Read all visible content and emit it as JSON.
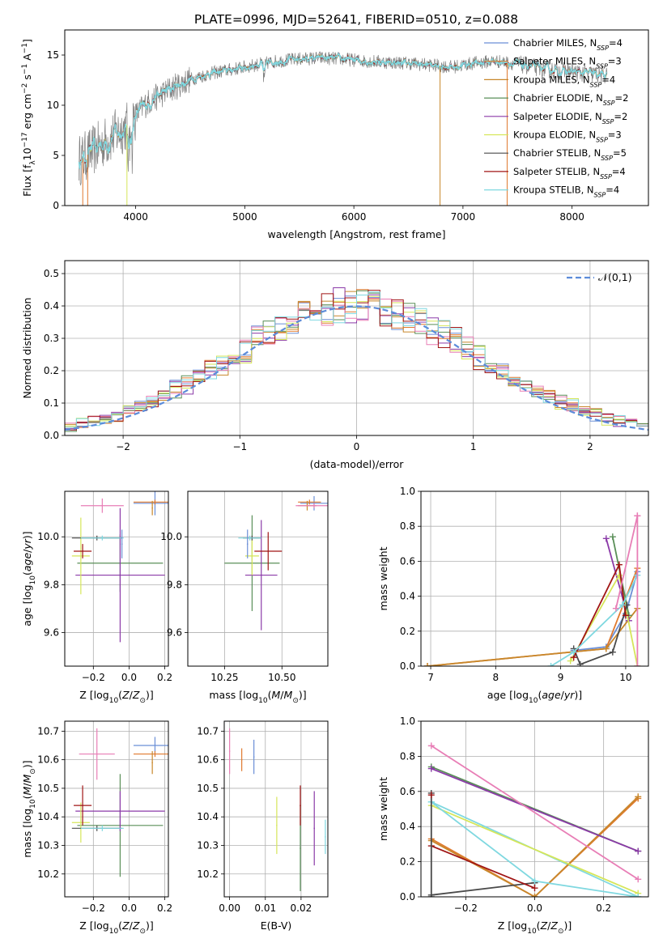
{
  "suptitle": "PLATE=0996, MJD=52641, FIBERID=0510, z=0.088",
  "series": [
    {
      "name": "Chabrier MILES, N$_{SSP}$=4",
      "label": "Chabrier MILES, N",
      "sub": "SSP",
      "suffix": "=4",
      "color": "#6b8fd6"
    },
    {
      "name": "Salpeter MILES",
      "label": "Salpeter MILES, N",
      "sub": "SSP",
      "suffix": "=3",
      "color": "#e07a2f"
    },
    {
      "name": "Kroupa MILES",
      "label": "Kroupa MILES, N",
      "sub": "SSP",
      "suffix": "=4",
      "color": "#c8872b"
    },
    {
      "name": "Chabrier ELODIE",
      "label": "Chabrier ELODIE, N",
      "sub": "SSP",
      "suffix": "=2",
      "color": "#5a8f58"
    },
    {
      "name": "Salpeter ELODIE",
      "label": "Salpeter ELODIE, N",
      "sub": "SSP",
      "suffix": "=2",
      "color": "#8b3aa8"
    },
    {
      "name": "Kroupa ELODIE",
      "label": "Kroupa ELODIE, N",
      "sub": "SSP",
      "suffix": "=3",
      "color": "#d6e65a"
    },
    {
      "name": "Chabrier STELIB",
      "label": "Chabrier STELIB, N",
      "sub": "SSP",
      "suffix": "=5",
      "color": "#4a4a4a"
    },
    {
      "name": "Salpeter STELIB",
      "label": "Salpeter STELIB, N",
      "sub": "SSP",
      "suffix": "=4",
      "color": "#a01515"
    },
    {
      "name": "Kroupa STELIB",
      "label": "Kroupa STELIB, N",
      "sub": "SSP",
      "suffix": "=4",
      "color": "#7fd8e0"
    }
  ],
  "chart_data": [
    {
      "id": "spectrum",
      "type": "line",
      "xlabel": "wavelength [Angstrom, rest frame]",
      "ylabel_main": "Flux [f",
      "ylabel_sub": "λ",
      "ylabel_rest": "10",
      "ylabel_sup": "−17",
      "ylabel_units": " erg cm",
      "ylabel_sup2": "−2",
      "ylabel_units2": " s",
      "ylabel_sup3": "−1",
      "ylabel_units3": " A",
      "ylabel_sup4": "−1",
      "ylabel_close": "]",
      "xlim": [
        3350,
        8700
      ],
      "ylim": [
        0,
        17.5
      ],
      "xticks": [
        4000,
        5000,
        6000,
        7000,
        8000
      ],
      "yticks": [
        0,
        5,
        10,
        15
      ],
      "data_color": "#808080",
      "continuum": {
        "x": [
          3500,
          3700,
          3900,
          4100,
          4300,
          4500,
          4700,
          4900,
          5100,
          5300,
          5500,
          5700,
          5900,
          6100,
          6300,
          6500,
          6700,
          6900,
          7100,
          7300,
          7500,
          7700,
          7900,
          8100,
          8300
        ],
        "y": [
          4.6,
          6.2,
          7.8,
          10.2,
          11.5,
          12.6,
          13.2,
          13.6,
          14.0,
          14.4,
          14.6,
          14.7,
          14.6,
          14.4,
          14.3,
          14.2,
          14.0,
          13.8,
          14.2,
          14.4,
          14.1,
          13.7,
          13.4,
          13.2,
          13.0
        ]
      }
    },
    {
      "id": "residuals",
      "type": "histogram",
      "xlabel": "(data-model)/error",
      "ylabel": "Normed distribution",
      "xlim": [
        -2.5,
        2.5
      ],
      "ylim": [
        0,
        0.54
      ],
      "xticks": [
        -2,
        -1,
        0,
        1,
        2
      ],
      "xticklabels": [
        "−2",
        "−1",
        "0",
        "1",
        "2"
      ],
      "yticks": [
        0.0,
        0.1,
        0.2,
        0.3,
        0.4,
        0.5
      ],
      "yticklabels": [
        "0.0",
        "0.1",
        "0.2",
        "0.3",
        "0.4",
        "0.5"
      ],
      "bin_width": 0.1,
      "normal_curve": {
        "name": "𝒩(0,1)",
        "color": "#5b8bd9"
      }
    },
    {
      "id": "age_vs_Z",
      "type": "errorbar",
      "xlabel": "Z [log10(Z/Z⊙)]",
      "ylabel": "age  [log10(age/yr)]",
      "xlim": [
        -0.36,
        0.22
      ],
      "ylim": [
        9.46,
        10.19
      ],
      "xticks": [
        -0.2,
        0.0,
        0.2
      ],
      "xticklabels": [
        "−0.2",
        "0.0",
        "0.2"
      ],
      "yticks": [
        9.6,
        9.8,
        10.0
      ],
      "yticklabels": [
        "9.6",
        "9.8",
        "10.0"
      ],
      "points": [
        {
          "s": 0,
          "x": 0.145,
          "xerr": 0.12,
          "y": 10.14,
          "yerr": 0.05
        },
        {
          "s": 1,
          "x": 0.145,
          "xerr": 0.12,
          "y": 10.145,
          "yerr": 0.01
        },
        {
          "s": 2,
          "x": 0.13,
          "xerr": 0.0,
          "y": 10.12,
          "yerr": 0.03
        },
        {
          "s": 3,
          "x": -0.05,
          "xerr": 0.24,
          "y": 9.89,
          "yerr": 0.12
        },
        {
          "s": 4,
          "x": -0.05,
          "xerr": 0.25,
          "y": 9.84,
          "yerr": 0.28
        },
        {
          "s": 5,
          "x": -0.27,
          "xerr": 0.05,
          "y": 9.92,
          "yerr": 0.16
        },
        {
          "s": 6,
          "x": -0.18,
          "xerr": 0.14,
          "y": 9.995,
          "yerr": 0.01
        },
        {
          "s": 7,
          "x": -0.26,
          "xerr": 0.05,
          "y": 9.94,
          "yerr": 0.03
        },
        {
          "s": 8,
          "x": -0.15,
          "xerr": 0.12,
          "y": 9.995,
          "yerr": 0.01
        },
        {
          "s": 0,
          "x": -0.04,
          "xerr": 0.0,
          "y": 9.97,
          "yerr": 0.06
        },
        {
          "s": 7,
          "x": -0.15,
          "xerr": 0.12,
          "y": 10.13,
          "yerr": 0.03,
          "color": "#e87eb6"
        }
      ]
    },
    {
      "id": "age_vs_mass",
      "type": "errorbar",
      "xlabel": "mass [log10(M/M⊙)]",
      "ylabel": "",
      "xlim": [
        10.09,
        10.7
      ],
      "ylim": [
        9.46,
        10.19
      ],
      "xticks": [
        10.25,
        10.5
      ],
      "xticklabels": [
        "10.25",
        "10.50"
      ],
      "yticks": [
        9.6,
        9.8,
        10.0
      ],
      "yticklabels": [
        "9.6",
        "9.8",
        "10.0"
      ],
      "points": [
        {
          "s": 0,
          "x": 10.64,
          "xerr": 0.06,
          "y": 10.14,
          "yerr": 0.03
        },
        {
          "s": 1,
          "x": 10.62,
          "xerr": 0.05,
          "y": 10.145,
          "yerr": 0.01
        },
        {
          "s": 2,
          "x": 10.61,
          "xerr": 0.04,
          "y": 10.13,
          "yerr": 0.02
        },
        {
          "s": 3,
          "x": 10.37,
          "xerr": 0.12,
          "y": 9.89,
          "yerr": 0.2
        },
        {
          "s": 4,
          "x": 10.41,
          "xerr": 0.07,
          "y": 9.84,
          "yerr": 0.23
        },
        {
          "s": 5,
          "x": 10.37,
          "xerr": 0.03,
          "y": 9.92,
          "yerr": 0.08
        },
        {
          "s": 6,
          "x": 10.37,
          "xerr": 0.04,
          "y": 9.995,
          "yerr": 0.01
        },
        {
          "s": 7,
          "x": 10.44,
          "xerr": 0.06,
          "y": 9.94,
          "yerr": 0.08
        },
        {
          "s": 8,
          "x": 10.36,
          "xerr": 0.05,
          "y": 9.995,
          "yerr": 0.01
        },
        {
          "s": 0,
          "x": 10.35,
          "xerr": 0.0,
          "y": 9.97,
          "yerr": 0.06
        },
        {
          "s": 7,
          "x": 10.64,
          "xerr": 0.08,
          "y": 10.13,
          "yerr": 0.01,
          "color": "#e87eb6"
        }
      ]
    },
    {
      "id": "weight_vs_age",
      "type": "line",
      "xlabel": "age  [log10(age/yr)]",
      "ylabel": "mass weight",
      "xlim": [
        6.85,
        10.35
      ],
      "ylim": [
        0,
        1
      ],
      "xticks": [
        7,
        8,
        9,
        10
      ],
      "xticklabels": [
        "7",
        "8",
        "9",
        "10"
      ],
      "yticks": [
        0,
        0.2,
        0.4,
        0.6,
        0.8,
        1.0
      ],
      "yticklabels": [
        "0.0",
        "0.2",
        "0.4",
        "0.6",
        "0.8",
        "1.0"
      ],
      "lines": [
        {
          "s": 0,
          "x": [
            9.2,
            9.7,
            10.0,
            10.18
          ],
          "y": [
            0.09,
            0.11,
            0.3,
            0.54
          ]
        },
        {
          "s": 1,
          "x": [
            6.95,
            9.7,
            10.18
          ],
          "y": [
            0.0,
            0.1,
            0.56
          ]
        },
        {
          "s": 2,
          "x": [
            6.95,
            9.7,
            10.18
          ],
          "y": [
            0.0,
            0.1,
            0.33
          ]
        },
        {
          "s": 3,
          "x": [
            9.8,
            10.05
          ],
          "y": [
            0.74,
            0.29
          ]
        },
        {
          "s": 4,
          "x": [
            9.7,
            10.05
          ],
          "y": [
            0.73,
            0.26
          ]
        },
        {
          "s": 5,
          "x": [
            9.15,
            9.9,
            10.18
          ],
          "y": [
            0.03,
            0.52,
            0.0
          ]
        },
        {
          "s": 6,
          "x": [
            9.2,
            9.3,
            9.8,
            10.02
          ],
          "y": [
            0.1,
            0.01,
            0.08,
            0.35
          ]
        },
        {
          "s": 7,
          "x": [
            9.2,
            9.9,
            10.0
          ],
          "y": [
            0.05,
            0.58,
            0.29
          ]
        },
        {
          "s": 8,
          "x": [
            8.85,
            9.2,
            9.95,
            10.18
          ],
          "y": [
            0.0,
            0.08,
            0.35,
            0.52
          ]
        },
        {
          "s": 0,
          "x": [
            10.18,
            10.18
          ],
          "y": [
            0.0,
            0.86
          ],
          "color": "#e87eb6"
        },
        {
          "s": 0,
          "x": [
            9.85,
            10.18
          ],
          "y": [
            0.33,
            0.86
          ],
          "color": "#e87eb6"
        }
      ]
    },
    {
      "id": "mass_vs_Z",
      "type": "errorbar",
      "xlabel": "Z [log10(Z/Z⊙)]",
      "ylabel": "mass [log10(M/M⊙)]",
      "xlim": [
        -0.36,
        0.22
      ],
      "ylim": [
        10.12,
        10.735
      ],
      "xticks": [
        -0.2,
        0.0,
        0.2
      ],
      "xticklabels": [
        "−0.2",
        "0.0",
        "0.2"
      ],
      "yticks": [
        10.2,
        10.3,
        10.4,
        10.5,
        10.6,
        10.7
      ],
      "yticklabels": [
        "10.2",
        "10.3",
        "10.4",
        "10.5",
        "10.6",
        "10.7"
      ],
      "points": [
        {
          "s": 0,
          "x": 0.145,
          "xerr": 0.12,
          "y": 10.65,
          "yerr": 0.03
        },
        {
          "s": 1,
          "x": 0.145,
          "xerr": 0.12,
          "y": 10.62,
          "yerr": 0.01
        },
        {
          "s": 2,
          "x": 0.13,
          "xerr": 0.0,
          "y": 10.59,
          "yerr": 0.04
        },
        {
          "s": 3,
          "x": -0.05,
          "xerr": 0.24,
          "y": 10.37,
          "yerr": 0.18
        },
        {
          "s": 4,
          "x": -0.05,
          "xerr": 0.25,
          "y": 10.42,
          "yerr": 0.07
        },
        {
          "s": 5,
          "x": -0.27,
          "xerr": 0.05,
          "y": 10.38,
          "yerr": 0.07
        },
        {
          "s": 6,
          "x": -0.18,
          "xerr": 0.14,
          "y": 10.36,
          "yerr": 0.01
        },
        {
          "s": 7,
          "x": -0.26,
          "xerr": 0.05,
          "y": 10.44,
          "yerr": 0.07
        },
        {
          "s": 8,
          "x": -0.15,
          "xerr": 0.12,
          "y": 10.36,
          "yerr": 0.01
        },
        {
          "s": 7,
          "x": -0.18,
          "xerr": 0.1,
          "y": 10.62,
          "yerr": 0.09,
          "color": "#e87eb6"
        }
      ]
    },
    {
      "id": "mass_vs_EBV",
      "type": "errorbar",
      "xlabel": "E(B-V)",
      "ylabel": "",
      "xlim": [
        -0.0015,
        0.0275
      ],
      "ylim": [
        10.12,
        10.735
      ],
      "xticks": [
        0.0,
        0.01,
        0.02
      ],
      "xticklabels": [
        "0.00",
        "0.01",
        "0.02"
      ],
      "yticks": [
        10.2,
        10.3,
        10.4,
        10.5,
        10.6,
        10.7
      ],
      "yticklabels": [
        "10.2",
        "10.3",
        "10.4",
        "10.5",
        "10.6",
        "10.7"
      ],
      "points": [
        {
          "s": 0,
          "x": 0.0068,
          "xerr": 0,
          "y": 10.61,
          "yerr": 0.06
        },
        {
          "s": 1,
          "x": 0.0034,
          "xerr": 0,
          "y": 10.6,
          "yerr": 0.04
        },
        {
          "s": 5,
          "x": 0.0132,
          "xerr": 0,
          "y": 10.37,
          "yerr": 0.1
        },
        {
          "s": 3,
          "x": 0.0198,
          "xerr": 0,
          "y": 10.29,
          "yerr": 0.15
        },
        {
          "s": 7,
          "x": 0.0198,
          "xerr": 0,
          "y": 10.44,
          "yerr": 0.07
        },
        {
          "s": 4,
          "x": 0.0237,
          "xerr": 0,
          "y": 10.36,
          "yerr": 0.13
        },
        {
          "s": 8,
          "x": 0.0268,
          "xerr": 0,
          "y": 10.33,
          "yerr": 0.06
        },
        {
          "s": 7,
          "x": 0.0,
          "xerr": 0,
          "y": 10.63,
          "yerr": 0.08,
          "color": "#e87eb6"
        }
      ]
    },
    {
      "id": "weight_vs_Z",
      "type": "line",
      "xlabel": "Z [log10(Z/Z⊙)]",
      "ylabel": "mass weight",
      "xlim": [
        -0.33,
        0.33
      ],
      "ylim": [
        0,
        1
      ],
      "xticks": [
        -0.2,
        0.0,
        0.2
      ],
      "xticklabels": [
        "−0.2",
        "0.0",
        "0.2"
      ],
      "yticks": [
        0,
        0.2,
        0.4,
        0.6,
        0.8,
        1.0
      ],
      "yticklabels": [
        "0.0",
        "0.2",
        "0.4",
        "0.6",
        "0.8",
        "1.0"
      ],
      "lines": [
        {
          "s": 0,
          "x": [
            -0.3,
            0.3
          ],
          "y": [
            0.54,
            0.0
          ],
          "color": "#7fd8e0"
        },
        {
          "s": 1,
          "x": [
            -0.3,
            0.0,
            0.3
          ],
          "y": [
            0.33,
            0.0,
            0.56
          ]
        },
        {
          "s": 2,
          "x": [
            -0.3,
            0.0,
            0.3
          ],
          "y": [
            0.32,
            0.0,
            0.57
          ]
        },
        {
          "s": 3,
          "x": [
            -0.3,
            0.3
          ],
          "y": [
            0.74,
            0.26
          ]
        },
        {
          "s": 4,
          "x": [
            -0.3,
            0.3
          ],
          "y": [
            0.73,
            0.26
          ]
        },
        {
          "s": 5,
          "x": [
            -0.3,
            0.3
          ],
          "y": [
            0.52,
            0.02
          ]
        },
        {
          "s": 6,
          "x": [
            -0.3,
            0.0
          ],
          "y": [
            0.01,
            0.08
          ]
        },
        {
          "s": 7,
          "x": [
            -0.3,
            0.0
          ],
          "y": [
            0.29,
            0.05
          ]
        },
        {
          "s": 8,
          "x": [
            -0.3,
            0.0,
            0.3
          ],
          "y": [
            0.54,
            0.09,
            0.0
          ]
        },
        {
          "s": 0,
          "x": [
            -0.3,
            0.3
          ],
          "y": [
            0.86,
            0.1
          ],
          "color": "#e87eb6"
        },
        {
          "s": 6,
          "x": [
            -0.3,
            -0.3
          ],
          "y": [
            0.0,
            0.59
          ]
        },
        {
          "s": 7,
          "x": [
            -0.3
          ],
          "y": [
            0.58
          ]
        }
      ]
    }
  ]
}
